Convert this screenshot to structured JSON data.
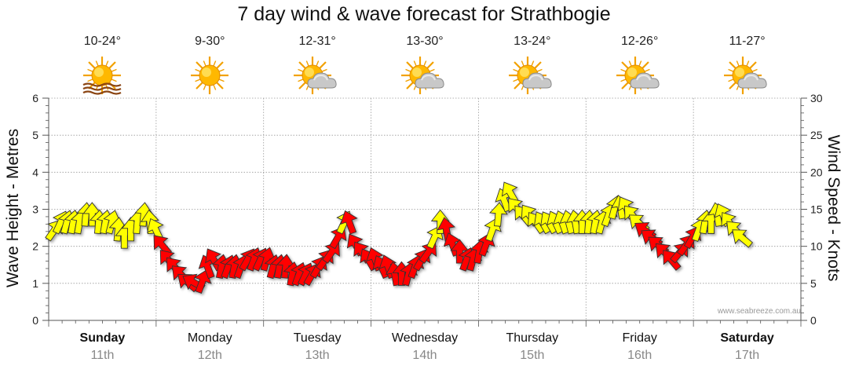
{
  "title": "7 day wind & wave forecast for Strathbogie",
  "credit": "www.seabreeze.com.au",
  "days": [
    {
      "name": "Sunday",
      "date": "11th",
      "temp": "10-24°",
      "icon": "sun-haze-icon",
      "bold": true
    },
    {
      "name": "Monday",
      "date": "12th",
      "temp": "9-30°",
      "icon": "sun-icon",
      "bold": false
    },
    {
      "name": "Tuesday",
      "date": "13th",
      "temp": "12-31°",
      "icon": "partly-cloudy-icon",
      "bold": false
    },
    {
      "name": "Wednesday",
      "date": "14th",
      "temp": "13-30°",
      "icon": "partly-cloudy-icon",
      "bold": false
    },
    {
      "name": "Thursday",
      "date": "15th",
      "temp": "13-24°",
      "icon": "partly-cloudy-icon",
      "bold": false
    },
    {
      "name": "Friday",
      "date": "16th",
      "temp": "12-26°",
      "icon": "partly-cloudy-icon",
      "bold": false
    },
    {
      "name": "Saturday",
      "date": "17th",
      "temp": "11-27°",
      "icon": "partly-cloudy-icon",
      "bold": true
    }
  ],
  "colors": {
    "arrow_yellow": "#ffff00",
    "arrow_red": "#ff0000",
    "grid": "#999999",
    "axis": "#555555"
  },
  "chart_data": {
    "type": "line",
    "title": "7 day wind & wave forecast for Strathbogie",
    "ylabel_left": "Wave Height - Metres",
    "ylabel_right": "Wind Speed - Knots",
    "ylim_left": [
      0,
      6
    ],
    "ylim_right": [
      0,
      30
    ],
    "yticks_left": [
      "0",
      "1",
      "2",
      "3",
      "4",
      "5",
      "6"
    ],
    "yticks_right": [
      "0",
      "5",
      "10",
      "15",
      "20",
      "25",
      "30"
    ],
    "grid": true,
    "categories": [
      "Sunday 11th",
      "Monday 12th",
      "Tuesday 13th",
      "Wednesday 14th",
      "Thursday 15th",
      "Friday 16th",
      "Saturday 17th"
    ],
    "series": [
      {
        "values": [
          {
            "x": 0.0,
            "y": 12,
            "c": "yellow",
            "d": 35
          },
          {
            "x": 0.06,
            "y": 13,
            "c": "yellow",
            "d": 25
          },
          {
            "x": 0.12,
            "y": 13,
            "c": "yellow",
            "d": 15
          },
          {
            "x": 0.18,
            "y": 13,
            "c": "yellow",
            "d": 10
          },
          {
            "x": 0.24,
            "y": 13,
            "c": "yellow",
            "d": 10
          },
          {
            "x": 0.3,
            "y": 14,
            "c": "yellow",
            "d": 5
          },
          {
            "x": 0.36,
            "y": 14,
            "c": "yellow",
            "d": 0
          },
          {
            "x": 0.42,
            "y": 13,
            "c": "yellow",
            "d": 5
          },
          {
            "x": 0.48,
            "y": 13,
            "c": "yellow",
            "d": 10
          },
          {
            "x": 0.54,
            "y": 13,
            "c": "yellow",
            "d": 15
          },
          {
            "x": 0.6,
            "y": 12,
            "c": "yellow",
            "d": 5
          },
          {
            "x": 0.66,
            "y": 11,
            "c": "yellow",
            "d": 0
          },
          {
            "x": 0.72,
            "y": 12,
            "c": "yellow",
            "d": 0
          },
          {
            "x": 0.78,
            "y": 13,
            "c": "yellow",
            "d": 5
          },
          {
            "x": 0.84,
            "y": 14,
            "c": "yellow",
            "d": 5
          },
          {
            "x": 0.9,
            "y": 13,
            "c": "yellow",
            "d": -5
          },
          {
            "x": 0.96,
            "y": 12,
            "c": "yellow",
            "d": -25
          },
          {
            "x": 1.02,
            "y": 10,
            "c": "red",
            "d": -40
          },
          {
            "x": 1.08,
            "y": 8,
            "c": "red",
            "d": -40
          },
          {
            "x": 1.14,
            "y": 7,
            "c": "red",
            "d": -40
          },
          {
            "x": 1.2,
            "y": 6,
            "c": "red",
            "d": -45
          },
          {
            "x": 1.26,
            "y": 5,
            "c": "red",
            "d": -50
          },
          {
            "x": 1.32,
            "y": 5,
            "c": "red",
            "d": -60
          },
          {
            "x": 1.38,
            "y": 5,
            "c": "red",
            "d": 20
          },
          {
            "x": 1.44,
            "y": 7,
            "c": "red",
            "d": -20
          },
          {
            "x": 1.5,
            "y": 8,
            "c": "red",
            "d": -30
          },
          {
            "x": 1.56,
            "y": 7,
            "c": "red",
            "d": 10
          },
          {
            "x": 1.62,
            "y": 7,
            "c": "red",
            "d": 20
          },
          {
            "x": 1.68,
            "y": 7,
            "c": "red",
            "d": 10
          },
          {
            "x": 1.74,
            "y": 7,
            "c": "red",
            "d": 20
          },
          {
            "x": 1.8,
            "y": 8,
            "c": "red",
            "d": 30
          },
          {
            "x": 1.86,
            "y": 8,
            "c": "red",
            "d": 20
          },
          {
            "x": 1.92,
            "y": 8,
            "c": "red",
            "d": 25
          },
          {
            "x": 1.98,
            "y": 8,
            "c": "red",
            "d": 15
          },
          {
            "x": 2.04,
            "y": 7,
            "c": "red",
            "d": 15
          },
          {
            "x": 2.1,
            "y": 7,
            "c": "red",
            "d": 10
          },
          {
            "x": 2.16,
            "y": 7,
            "c": "red",
            "d": 5
          },
          {
            "x": 2.22,
            "y": 6,
            "c": "red",
            "d": 10
          },
          {
            "x": 2.28,
            "y": 6,
            "c": "red",
            "d": 20
          },
          {
            "x": 2.34,
            "y": 6,
            "c": "red",
            "d": 25
          },
          {
            "x": 2.4,
            "y": 6,
            "c": "red",
            "d": 30
          },
          {
            "x": 2.46,
            "y": 7,
            "c": "red",
            "d": 30
          },
          {
            "x": 2.52,
            "y": 8,
            "c": "red",
            "d": 35
          },
          {
            "x": 2.58,
            "y": 9,
            "c": "red",
            "d": 35
          },
          {
            "x": 2.64,
            "y": 11,
            "c": "red",
            "d": 30
          },
          {
            "x": 2.7,
            "y": 13,
            "c": "yellow",
            "d": 25
          },
          {
            "x": 2.76,
            "y": 13,
            "c": "red",
            "d": -20
          },
          {
            "x": 2.82,
            "y": 10,
            "c": "red",
            "d": -30
          },
          {
            "x": 2.88,
            "y": 9,
            "c": "red",
            "d": -35
          },
          {
            "x": 2.94,
            "y": 8,
            "c": "red",
            "d": -30
          },
          {
            "x": 3.0,
            "y": 8,
            "c": "red",
            "d": -20
          },
          {
            "x": 3.06,
            "y": 7,
            "c": "red",
            "d": -25
          },
          {
            "x": 3.12,
            "y": 7,
            "c": "red",
            "d": -20
          },
          {
            "x": 3.18,
            "y": 6,
            "c": "red",
            "d": -10
          },
          {
            "x": 3.24,
            "y": 6,
            "c": "red",
            "d": 0
          },
          {
            "x": 3.3,
            "y": 6,
            "c": "red",
            "d": 15
          },
          {
            "x": 3.36,
            "y": 7,
            "c": "red",
            "d": 20
          },
          {
            "x": 3.42,
            "y": 8,
            "c": "red",
            "d": 30
          },
          {
            "x": 3.48,
            "y": 9,
            "c": "red",
            "d": 35
          },
          {
            "x": 3.54,
            "y": 11,
            "c": "yellow",
            "d": 25
          },
          {
            "x": 3.6,
            "y": 13,
            "c": "yellow",
            "d": 0
          },
          {
            "x": 3.66,
            "y": 12,
            "c": "red",
            "d": -10
          },
          {
            "x": 3.72,
            "y": 10,
            "c": "red",
            "d": -20
          },
          {
            "x": 3.78,
            "y": 9,
            "c": "red",
            "d": 0
          },
          {
            "x": 3.84,
            "y": 8,
            "c": "red",
            "d": 20
          },
          {
            "x": 3.9,
            "y": 8,
            "c": "red",
            "d": 15
          },
          {
            "x": 3.96,
            "y": 9,
            "c": "red",
            "d": 10
          },
          {
            "x": 4.02,
            "y": 10,
            "c": "red",
            "d": 20
          },
          {
            "x": 4.08,
            "y": 12,
            "c": "yellow",
            "d": 20
          },
          {
            "x": 4.14,
            "y": 14,
            "c": "yellow",
            "d": 5
          },
          {
            "x": 4.2,
            "y": 16,
            "c": "yellow",
            "d": -20
          },
          {
            "x": 4.26,
            "y": 17,
            "c": "yellow",
            "d": -30
          },
          {
            "x": 4.32,
            "y": 15,
            "c": "yellow",
            "d": -40
          },
          {
            "x": 4.38,
            "y": 14,
            "c": "yellow",
            "d": -40
          },
          {
            "x": 4.44,
            "y": 14,
            "c": "yellow",
            "d": -35
          },
          {
            "x": 4.5,
            "y": 13,
            "c": "yellow",
            "d": -35
          },
          {
            "x": 4.56,
            "y": 13,
            "c": "yellow",
            "d": -30
          },
          {
            "x": 4.62,
            "y": 13,
            "c": "yellow",
            "d": -30
          },
          {
            "x": 4.68,
            "y": 13,
            "c": "yellow",
            "d": -25
          },
          {
            "x": 4.74,
            "y": 13,
            "c": "yellow",
            "d": -20
          },
          {
            "x": 4.8,
            "y": 13,
            "c": "yellow",
            "d": -15
          },
          {
            "x": 4.86,
            "y": 13,
            "c": "yellow",
            "d": -10
          },
          {
            "x": 4.92,
            "y": 13,
            "c": "yellow",
            "d": 0
          },
          {
            "x": 4.98,
            "y": 13,
            "c": "yellow",
            "d": 5
          },
          {
            "x": 5.04,
            "y": 13,
            "c": "yellow",
            "d": 10
          },
          {
            "x": 5.1,
            "y": 13,
            "c": "yellow",
            "d": 15
          },
          {
            "x": 5.16,
            "y": 14,
            "c": "yellow",
            "d": 20
          },
          {
            "x": 5.22,
            "y": 15,
            "c": "yellow",
            "d": 15
          },
          {
            "x": 5.28,
            "y": 15,
            "c": "yellow",
            "d": -10
          },
          {
            "x": 5.34,
            "y": 15,
            "c": "yellow",
            "d": -30
          },
          {
            "x": 5.4,
            "y": 14,
            "c": "yellow",
            "d": -40
          },
          {
            "x": 5.46,
            "y": 13,
            "c": "yellow",
            "d": -50
          },
          {
            "x": 5.52,
            "y": 12,
            "c": "red",
            "d": -55
          },
          {
            "x": 5.58,
            "y": 11,
            "c": "red",
            "d": -55
          },
          {
            "x": 5.64,
            "y": 10,
            "c": "red",
            "d": -50
          },
          {
            "x": 5.7,
            "y": 9,
            "c": "red",
            "d": -45
          },
          {
            "x": 5.76,
            "y": 8,
            "c": "red",
            "d": -40
          },
          {
            "x": 5.82,
            "y": 9,
            "c": "red",
            "d": 40
          },
          {
            "x": 5.88,
            "y": 10,
            "c": "red",
            "d": 35
          },
          {
            "x": 5.94,
            "y": 11,
            "c": "red",
            "d": 30
          },
          {
            "x": 6.0,
            "y": 12,
            "c": "yellow",
            "d": 20
          },
          {
            "x": 6.06,
            "y": 13,
            "c": "yellow",
            "d": 10
          },
          {
            "x": 6.12,
            "y": 13,
            "c": "yellow",
            "d": 0
          },
          {
            "x": 6.18,
            "y": 14,
            "c": "yellow",
            "d": -10
          },
          {
            "x": 6.24,
            "y": 14,
            "c": "yellow",
            "d": -25
          },
          {
            "x": 6.3,
            "y": 13,
            "c": "yellow",
            "d": -35
          },
          {
            "x": 6.36,
            "y": 12,
            "c": "yellow",
            "d": -45
          },
          {
            "x": 6.42,
            "y": 11,
            "c": "yellow",
            "d": -50
          }
        ]
      }
    ]
  }
}
